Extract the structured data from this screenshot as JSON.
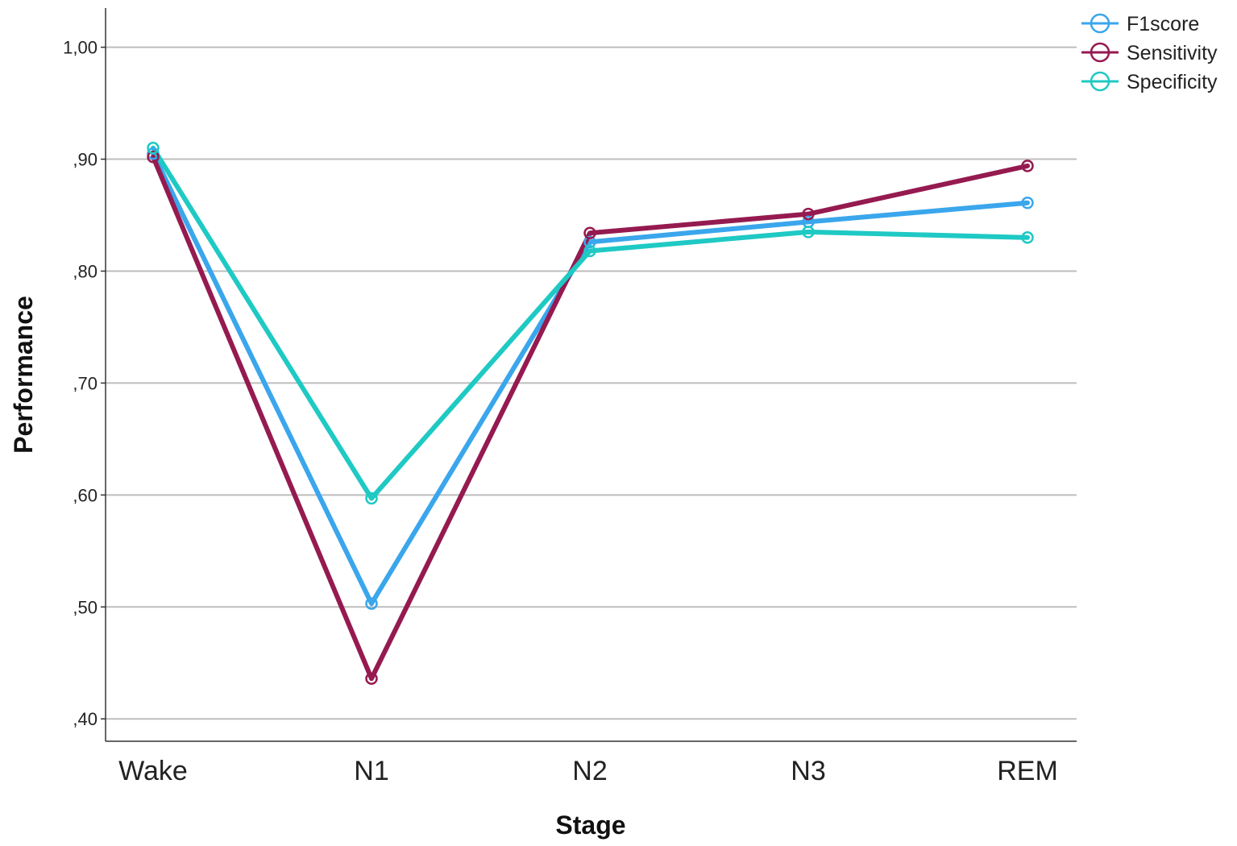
{
  "chart_data": {
    "type": "line",
    "xlabel": "Stage",
    "ylabel": "Performance",
    "categories": [
      "Wake",
      "N1",
      "N2",
      "N3",
      "REM"
    ],
    "ylim": [
      0.38,
      1.035
    ],
    "yticks": [
      0.4,
      0.5,
      0.6,
      0.7,
      0.8,
      0.9,
      1.0
    ],
    "ytick_labels": [
      ",40",
      ",50",
      ",60",
      ",70",
      ",80",
      ",90",
      "1,00"
    ],
    "grid": "horizontal",
    "legend_position": "top-right",
    "series": [
      {
        "name": "F1score",
        "color": "#3aa6ec",
        "values": [
          0.905,
          0.503,
          0.826,
          0.844,
          0.861
        ]
      },
      {
        "name": "Sensitivity",
        "color": "#951a50",
        "values": [
          0.902,
          0.436,
          0.834,
          0.851,
          0.894
        ]
      },
      {
        "name": "Specificity",
        "color": "#1fc9c4",
        "values": [
          0.91,
          0.597,
          0.818,
          0.835,
          0.83
        ]
      }
    ]
  }
}
